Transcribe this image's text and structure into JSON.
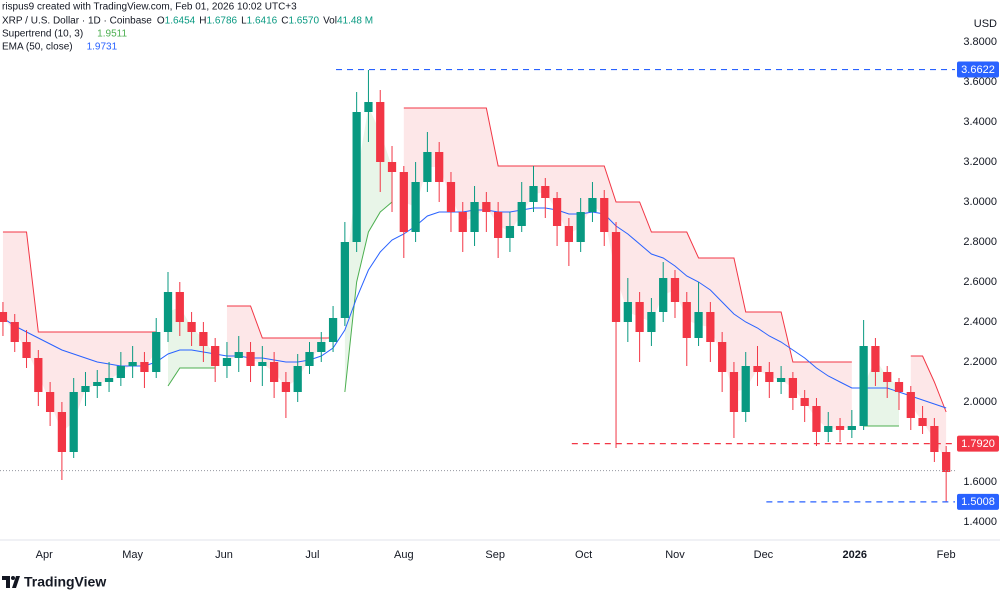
{
  "chart_data": {
    "type": "candlestick",
    "credit": "rispus9 created with TradingView.com, Feb 01, 2026 10:02 UTC+3",
    "symbol": "XRP / U.S. Dollar · 1D · Coinbase",
    "ohlc": [
      {
        "letter": "O",
        "value": 1.6454
      },
      {
        "letter": "H",
        "value": 1.6786
      },
      {
        "letter": "L",
        "value": 1.6416
      },
      {
        "letter": "C",
        "value": {
          "value": 1.657,
          "label": "1.6570"
        }
      },
      {
        "letter": "Vol",
        "value": {
          "value": 41.48,
          "label": "41.48 M"
        }
      }
    ],
    "header_value_color": "#089981",
    "y_axis_label": "USD",
    "brand": "TradingView",
    "up_color": "#089981",
    "down_color": "#f23645",
    "xlim": [
      -1,
      323
    ],
    "xticks": [
      {
        "value": 14,
        "label": "Apr"
      },
      {
        "value": 44,
        "label": "May"
      },
      {
        "value": 75,
        "label": "Jun"
      },
      {
        "value": 105,
        "label": "Jul"
      },
      {
        "value": 136,
        "label": "Aug"
      },
      {
        "value": 167,
        "label": "Sep"
      },
      {
        "value": 197,
        "label": "Oct"
      },
      {
        "value": 228,
        "label": "Nov"
      },
      {
        "value": 258,
        "label": "Dec"
      },
      {
        "value": 289,
        "label": "2026"
      },
      {
        "value": 320,
        "label": "Feb"
      }
    ],
    "ylim": [
      1.31,
      4.01
    ],
    "yticks": [
      {
        "value": 3.8,
        "label": "3.8000"
      },
      {
        "value": 3.6,
        "label": "3.6000"
      },
      {
        "value": 3.4,
        "label": "3.4000"
      },
      {
        "value": 3.2,
        "label": "3.2000"
      },
      {
        "value": 3.0,
        "label": "3.0000"
      },
      {
        "value": 2.8,
        "label": "2.8000"
      },
      {
        "value": 2.6,
        "label": "2.6000"
      },
      {
        "value": 2.4,
        "label": "2.4000"
      },
      {
        "value": 2.2,
        "label": "2.2000"
      },
      {
        "value": 2.0,
        "label": "2.0000"
      },
      {
        "value": 1.8,
        "label": "1.8000"
      },
      {
        "value": 1.6,
        "label": "1.6000"
      },
      {
        "value": 1.4,
        "label": "1.4000"
      }
    ],
    "x": [
      0,
      4,
      8,
      12,
      16,
      20,
      24,
      28,
      32,
      36,
      40,
      44,
      48,
      52,
      56,
      60,
      64,
      68,
      72,
      76,
      80,
      84,
      88,
      92,
      96,
      100,
      104,
      108,
      112,
      116,
      120,
      124,
      128,
      132,
      136,
      140,
      144,
      148,
      152,
      156,
      160,
      164,
      168,
      172,
      176,
      180,
      184,
      188,
      192,
      196,
      200,
      204,
      208,
      212,
      216,
      220,
      224,
      228,
      232,
      236,
      240,
      244,
      248,
      252,
      256,
      260,
      264,
      268,
      272,
      276,
      280,
      284,
      288,
      292,
      296,
      300,
      304,
      308,
      312,
      316,
      320
    ],
    "open": [
      2.45,
      2.4,
      2.3,
      2.22,
      2.05,
      1.95,
      1.75,
      2.05,
      2.08,
      2.1,
      2.12,
      2.18,
      2.2,
      2.15,
      2.35,
      2.55,
      2.4,
      2.35,
      2.28,
      2.18,
      2.22,
      2.25,
      2.18,
      2.2,
      2.1,
      2.05,
      2.18,
      2.25,
      2.3,
      2.42,
      2.8,
      3.45,
      3.5,
      3.2,
      3.15,
      2.85,
      3.1,
      3.25,
      3.1,
      2.95,
      2.85,
      3.0,
      2.95,
      2.82,
      2.88,
      3.0,
      3.08,
      3.02,
      2.88,
      2.8,
      2.95,
      3.02,
      2.85,
      2.4,
      2.5,
      2.35,
      2.45,
      2.62,
      2.5,
      2.32,
      2.45,
      2.3,
      2.15,
      1.95,
      2.18,
      2.15,
      2.1,
      2.12,
      2.02,
      1.98,
      1.85,
      1.88,
      1.86,
      1.88,
      2.28,
      2.15,
      2.1,
      2.05,
      1.92,
      1.88,
      1.75
    ],
    "high": [
      2.5,
      2.44,
      2.36,
      2.26,
      2.1,
      2.0,
      2.12,
      2.15,
      2.16,
      2.2,
      2.25,
      2.28,
      2.25,
      2.42,
      2.65,
      2.6,
      2.45,
      2.4,
      2.32,
      2.3,
      2.33,
      2.3,
      2.28,
      2.25,
      2.15,
      2.24,
      2.3,
      2.35,
      2.48,
      2.9,
      3.55,
      3.66,
      3.56,
      3.28,
      3.18,
      3.2,
      3.35,
      3.3,
      3.15,
      3.0,
      3.08,
      3.05,
      3.0,
      2.95,
      3.1,
      3.18,
      3.12,
      3.05,
      2.92,
      3.02,
      3.1,
      3.06,
      2.9,
      2.62,
      2.55,
      2.52,
      2.7,
      2.66,
      2.55,
      2.6,
      2.5,
      2.35,
      2.2,
      2.25,
      2.28,
      2.2,
      2.18,
      2.15,
      2.06,
      2.02,
      1.95,
      1.92,
      1.96,
      2.41,
      2.32,
      2.18,
      2.12,
      2.08,
      1.98,
      1.92,
      1.78
    ],
    "low": [
      2.33,
      2.25,
      2.17,
      1.98,
      1.88,
      1.61,
      1.72,
      1.98,
      2.02,
      2.05,
      2.08,
      2.12,
      2.07,
      2.12,
      2.3,
      2.33,
      2.28,
      2.2,
      2.1,
      2.12,
      2.15,
      2.1,
      2.08,
      2.02,
      1.92,
      2.0,
      2.14,
      2.2,
      2.25,
      2.38,
      2.75,
      3.3,
      3.05,
      2.95,
      2.72,
      2.8,
      3.05,
      3.0,
      2.85,
      2.75,
      2.78,
      2.85,
      2.72,
      2.75,
      2.85,
      2.95,
      2.92,
      2.78,
      2.68,
      2.75,
      2.9,
      2.78,
      1.77,
      2.3,
      2.2,
      2.28,
      2.4,
      2.42,
      2.18,
      2.28,
      2.2,
      2.05,
      1.82,
      1.9,
      2.08,
      2.02,
      2.04,
      1.96,
      1.9,
      1.78,
      1.8,
      1.8,
      1.82,
      1.86,
      2.08,
      2.02,
      1.96,
      1.86,
      1.84,
      1.7,
      1.5
    ],
    "close": [
      2.4,
      2.3,
      2.22,
      2.05,
      1.95,
      1.75,
      2.05,
      2.08,
      2.1,
      2.12,
      2.18,
      2.2,
      2.15,
      2.35,
      2.55,
      2.4,
      2.35,
      2.28,
      2.18,
      2.22,
      2.25,
      2.18,
      2.2,
      2.1,
      2.05,
      2.18,
      2.25,
      2.3,
      2.42,
      2.8,
      3.45,
      3.5,
      3.2,
      3.15,
      2.85,
      3.1,
      3.25,
      3.1,
      2.95,
      2.85,
      3.0,
      2.95,
      2.82,
      2.88,
      3.0,
      3.08,
      3.02,
      2.88,
      2.8,
      2.95,
      3.02,
      2.85,
      2.4,
      2.5,
      2.35,
      2.45,
      2.62,
      2.5,
      2.32,
      2.45,
      2.3,
      2.15,
      1.95,
      2.18,
      2.15,
      2.1,
      2.12,
      2.02,
      1.98,
      1.85,
      1.88,
      1.86,
      1.88,
      2.28,
      2.15,
      2.1,
      2.05,
      1.92,
      1.88,
      1.75,
      1.65
    ],
    "supertrend": {
      "name": "Supertrend (10, 3)",
      "value": 1.9511,
      "up_color": "#4caf50",
      "down_color": "#f23645",
      "down": [
        2.85,
        2.85,
        2.85,
        2.35,
        2.35,
        2.35,
        2.35,
        2.35,
        2.35,
        2.35,
        2.35,
        2.35,
        2.35,
        2.35,
        null,
        null,
        null,
        null,
        null,
        2.48,
        2.48,
        2.48,
        2.32,
        2.32,
        2.32,
        2.32,
        2.32,
        2.32,
        2.32,
        null,
        null,
        null,
        null,
        null,
        3.47,
        3.47,
        3.47,
        3.47,
        3.47,
        3.47,
        3.47,
        3.47,
        3.18,
        3.18,
        3.18,
        3.18,
        3.18,
        3.18,
        3.18,
        3.18,
        3.18,
        3.18,
        3.0,
        3.0,
        3.0,
        2.85,
        2.85,
        2.85,
        2.85,
        2.72,
        2.72,
        2.72,
        2.72,
        2.45,
        2.45,
        2.45,
        2.45,
        2.2,
        2.2,
        2.2,
        2.2,
        2.2,
        2.2,
        null,
        null,
        null,
        null,
        2.23,
        2.23,
        2.1,
        1.95
      ],
      "up": [
        null,
        null,
        null,
        null,
        null,
        null,
        null,
        null,
        null,
        null,
        null,
        null,
        null,
        null,
        2.08,
        2.17,
        2.17,
        2.17,
        2.17,
        null,
        null,
        null,
        null,
        null,
        null,
        null,
        null,
        null,
        null,
        2.05,
        2.6,
        2.85,
        2.95,
        3.0,
        null,
        null,
        null,
        null,
        null,
        null,
        null,
        null,
        null,
        null,
        null,
        null,
        null,
        null,
        null,
        null,
        null,
        null,
        null,
        null,
        null,
        null,
        null,
        null,
        null,
        null,
        null,
        null,
        null,
        null,
        null,
        null,
        null,
        null,
        null,
        null,
        null,
        null,
        null,
        1.88,
        1.88,
        1.88,
        1.88,
        null,
        null,
        null,
        null
      ]
    },
    "ema": {
      "name": "EMA (50, close)",
      "value": 1.9731,
      "color": "#2962ff",
      "values": [
        2.42,
        2.38,
        2.35,
        2.32,
        2.29,
        2.26,
        2.24,
        2.22,
        2.2,
        2.19,
        2.18,
        2.18,
        2.18,
        2.2,
        2.24,
        2.26,
        2.26,
        2.25,
        2.24,
        2.23,
        2.23,
        2.22,
        2.22,
        2.21,
        2.2,
        2.2,
        2.21,
        2.23,
        2.27,
        2.36,
        2.52,
        2.66,
        2.75,
        2.81,
        2.84,
        2.88,
        2.93,
        2.95,
        2.95,
        2.95,
        2.96,
        2.96,
        2.95,
        2.95,
        2.96,
        2.97,
        2.97,
        2.96,
        2.94,
        2.94,
        2.95,
        2.94,
        2.88,
        2.84,
        2.79,
        2.74,
        2.72,
        2.68,
        2.63,
        2.6,
        2.56,
        2.5,
        2.44,
        2.4,
        2.37,
        2.33,
        2.3,
        2.26,
        2.22,
        2.17,
        2.13,
        2.1,
        2.07,
        2.07,
        2.07,
        2.07,
        2.05,
        2.03,
        2.01,
        1.99,
        1.97
      ]
    },
    "levels": [
      {
        "value": 3.6622,
        "color": "#2962ff",
        "start": 113
      },
      {
        "value": 1.792,
        "label": "1.7920",
        "color": "#f23645",
        "start": 193
      },
      {
        "value": 1.5008,
        "color": "#2962ff",
        "start": 259
      }
    ]
  }
}
